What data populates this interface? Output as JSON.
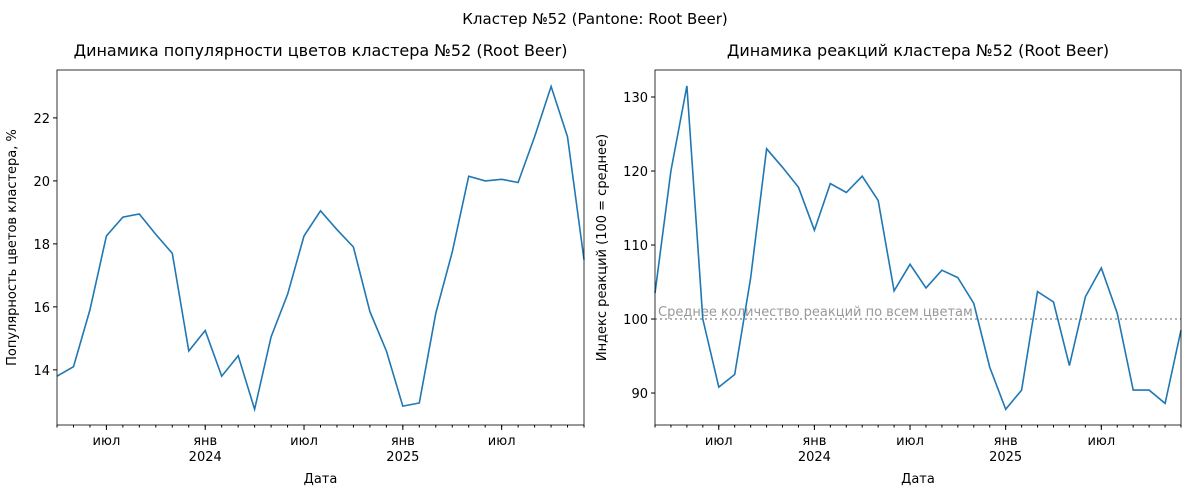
{
  "title": "Кластер №52 (Pantone: Root Beer)",
  "chart_data": [
    {
      "type": "line",
      "title": "Динамика популярности цветов кластера №52 (Root Beer)",
      "x_label": "Дата",
      "y_label": "Популярность цветов кластера, %",
      "x": [
        "2023-04",
        "2023-05",
        "2023-06",
        "2023-07",
        "2023-08",
        "2023-09",
        "2023-10",
        "2023-11",
        "2023-12",
        "2024-01",
        "2024-02",
        "2024-03",
        "2024-04",
        "2024-05",
        "2024-06",
        "2024-07",
        "2024-08",
        "2024-09",
        "2024-10",
        "2024-11",
        "2024-12",
        "2025-01",
        "2025-02",
        "2025-03",
        "2025-04",
        "2025-05",
        "2025-06",
        "2025-07",
        "2025-08",
        "2025-09",
        "2025-10",
        "2025-11",
        "2025-12"
      ],
      "series": [
        {
          "color": "#1f77b4",
          "values": [
            13.8,
            14.1,
            15.9,
            18.25,
            18.85,
            18.95,
            18.3,
            17.7,
            14.6,
            15.25,
            13.8,
            14.45,
            12.75,
            15.05,
            16.4,
            18.25,
            19.05,
            18.45,
            17.9,
            15.85,
            14.6,
            12.85,
            12.95,
            15.8,
            17.75,
            20.15,
            20.0,
            20.05,
            19.95,
            21.4,
            23.0,
            21.4,
            17.5
          ]
        }
      ],
      "xlim": [
        "2023-04",
        "2025-12"
      ],
      "xticks": [
        {
          "value": "2023-07",
          "label": "июл"
        },
        {
          "value": "2024-01",
          "label": "янв\n2024"
        },
        {
          "value": "2024-07",
          "label": "июл"
        },
        {
          "value": "2025-01",
          "label": "янв\n2025"
        },
        {
          "value": "2025-07",
          "label": "июл"
        }
      ],
      "ylim": [
        12.25,
        23.52
      ],
      "yticks": [
        14,
        16,
        18,
        20,
        22
      ]
    },
    {
      "type": "line",
      "title": "Динамика реакций кластера №52 (Root Beer)",
      "x_label": "Дата",
      "y_label": "Индекс реакций (100 = среднее)",
      "x": [
        "2023-03",
        "2023-04",
        "2023-05",
        "2023-06",
        "2023-07",
        "2023-08",
        "2023-09",
        "2023-10",
        "2023-11",
        "2023-12",
        "2024-01",
        "2024-02",
        "2024-03",
        "2024-04",
        "2024-05",
        "2024-06",
        "2024-07",
        "2024-08",
        "2024-09",
        "2024-10",
        "2024-11",
        "2024-12",
        "2025-01",
        "2025-02",
        "2025-03",
        "2025-04",
        "2025-05",
        "2025-06",
        "2025-07",
        "2025-08",
        "2025-09",
        "2025-10",
        "2025-11",
        "2025-12"
      ],
      "series": [
        {
          "color": "#1f77b4",
          "values": [
            103.5,
            120,
            131.5,
            100,
            90.8,
            92.5,
            105.5,
            123,
            120.5,
            117.8,
            112,
            118.3,
            117.1,
            119.3,
            116,
            103.8,
            107.4,
            104.2,
            106.6,
            105.6,
            102.1,
            93.5,
            87.8,
            90.4,
            103.7,
            102.3,
            93.7,
            103,
            106.9,
            100.8,
            90.4,
            90.4,
            88.6,
            98.5
          ]
        }
      ],
      "reference": {
        "value": 100,
        "label": "Среднее количество реакций по всем цветам",
        "color": "#999999"
      },
      "xlim": [
        "2023-03",
        "2025-12"
      ],
      "xticks": [
        {
          "value": "2023-07",
          "label": "июл"
        },
        {
          "value": "2024-01",
          "label": "янв\n2024"
        },
        {
          "value": "2024-07",
          "label": "июл"
        },
        {
          "value": "2025-01",
          "label": "янв\n2025"
        },
        {
          "value": "2025-07",
          "label": "июл"
        }
      ],
      "ylim": [
        85.68,
        133.65
      ],
      "yticks": [
        90,
        100,
        110,
        120,
        130
      ]
    }
  ]
}
